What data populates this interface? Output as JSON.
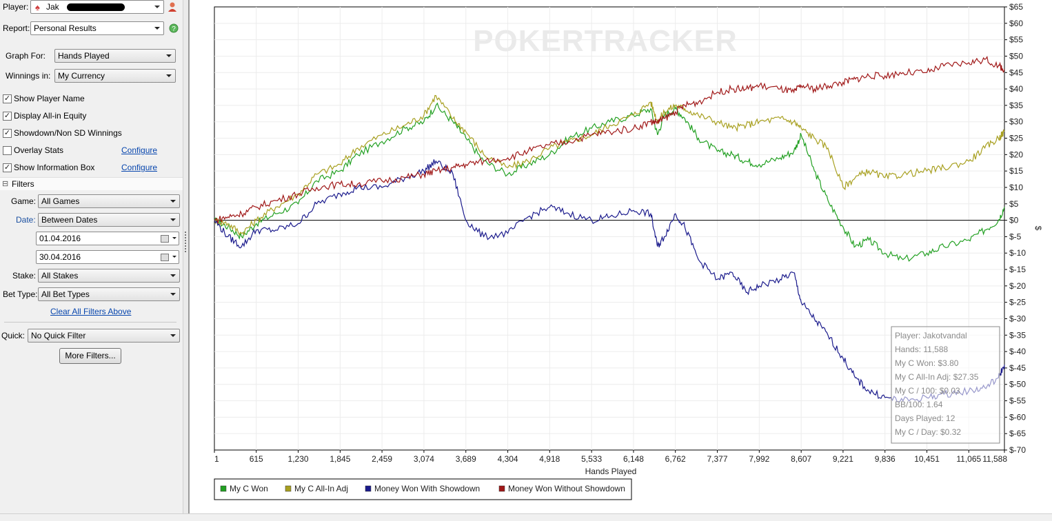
{
  "sidebar": {
    "player_label": "Player:",
    "player_value": "Jak",
    "report_label": "Report:",
    "report_value": "Personal Results",
    "graph_for_label": "Graph For:",
    "graph_for_value": "Hands Played",
    "winnings_label": "Winnings in:",
    "winnings_value": "My Currency",
    "checks": [
      {
        "label": "Show Player Name",
        "checked": true
      },
      {
        "label": "Display All-in Equity",
        "checked": true
      },
      {
        "label": "Showdown/Non SD Winnings",
        "checked": true
      },
      {
        "label": "Overlay Stats",
        "checked": false
      },
      {
        "label": "Show Information Box",
        "checked": true
      }
    ],
    "configure_label": "Configure",
    "filters_label": "Filters",
    "filters_toggle": "⊟",
    "game_label": "Game:",
    "game_value": "All Games",
    "date_label": "Date:",
    "date_value": "Between Dates",
    "date_from": "01.04.2016",
    "date_to": "30.04.2016",
    "stake_label": "Stake:",
    "stake_value": "All Stakes",
    "bet_type_label": "Bet Type:",
    "bet_type_value": "All Bet Types",
    "clear_filters_label": "Clear All Filters Above",
    "quick_label": "Quick:",
    "quick_value": "No Quick Filter",
    "more_filters_label": "More Filters..."
  },
  "chart_data": {
    "type": "line",
    "watermark": "POKERTRACKER",
    "xlabel": "Hands Played",
    "ylabel": "$",
    "xlim": [
      1,
      11588
    ],
    "ylim": [
      -70,
      65
    ],
    "x_ticks": [
      "1",
      "615",
      "1,230",
      "1,845",
      "2,459",
      "3,074",
      "3,689",
      "4,304",
      "4,918",
      "5,533",
      "6,148",
      "6,762",
      "7,377",
      "7,992",
      "8,607",
      "9,221",
      "9,836",
      "10,451",
      "11,065",
      "11,588"
    ],
    "y_ticks": [
      "$65",
      "$60",
      "$55",
      "$50",
      "$45",
      "$40",
      "$35",
      "$30",
      "$25",
      "$20",
      "$15",
      "$10",
      "$5",
      "$0",
      "$-5",
      "$-10",
      "$-15",
      "$-20",
      "$-25",
      "$-30",
      "$-35",
      "$-40",
      "$-45",
      "$-50",
      "$-55",
      "$-60",
      "$-65",
      "$-70"
    ],
    "grid": true,
    "legend_position": "bottom-left",
    "series": [
      {
        "name": "My C Won",
        "color": "#22a022",
        "x": [
          1,
          200,
          400,
          615,
          900,
          1230,
          1500,
          1845,
          2100,
          2459,
          2800,
          3074,
          3250,
          3500,
          3689,
          3950,
          4304,
          4600,
          4918,
          5200,
          5533,
          5800,
          6148,
          6400,
          6500,
          6600,
          6762,
          6900,
          7100,
          7377,
          7600,
          7800,
          7992,
          8300,
          8500,
          8607,
          8800,
          9000,
          9221,
          9400,
          9600,
          9836,
          10100,
          10451,
          10700,
          11065,
          11300,
          11500,
          11588
        ],
        "y": [
          0,
          -2,
          -5,
          -1,
          2,
          5,
          12,
          15,
          20,
          24,
          28,
          30,
          35,
          30,
          25,
          18,
          14,
          17,
          20,
          25,
          28,
          30,
          32,
          34,
          26,
          32,
          34,
          31,
          25,
          21,
          20,
          18,
          17,
          19,
          21,
          26,
          15,
          6,
          -2,
          -8,
          -6,
          -10,
          -12,
          -10,
          -8,
          -6,
          -3,
          0,
          4
        ]
      },
      {
        "name": "My C All-In Adj",
        "color": "#a8a020",
        "x": [
          1,
          200,
          400,
          615,
          900,
          1230,
          1500,
          1845,
          2100,
          2459,
          2800,
          3074,
          3250,
          3500,
          3689,
          3950,
          4304,
          4600,
          4918,
          5200,
          5533,
          5800,
          6148,
          6400,
          6500,
          6600,
          6762,
          6900,
          7100,
          7377,
          7600,
          7800,
          7992,
          8300,
          8500,
          8607,
          8800,
          9000,
          9221,
          9400,
          9600,
          9836,
          10100,
          10451,
          10700,
          11065,
          11300,
          11500,
          11588
        ],
        "y": [
          0,
          -1,
          -4,
          0,
          4,
          8,
          14,
          17,
          22,
          26,
          29,
          32,
          38,
          31,
          27,
          20,
          16,
          18,
          22,
          24,
          26,
          29,
          32,
          36,
          30,
          33,
          35,
          34,
          32,
          30,
          28,
          29,
          30,
          31,
          30,
          28,
          25,
          22,
          10,
          13,
          15,
          13,
          14,
          15,
          16,
          18,
          22,
          25,
          27
        ]
      },
      {
        "name": "Money Won With Showdown",
        "color": "#1a1a8c",
        "x": [
          1,
          200,
          400,
          615,
          900,
          1230,
          1500,
          1845,
          2100,
          2459,
          2800,
          3074,
          3250,
          3500,
          3689,
          3950,
          4304,
          4600,
          4918,
          5200,
          5533,
          5800,
          6148,
          6400,
          6500,
          6600,
          6762,
          6900,
          7100,
          7377,
          7600,
          7800,
          7992,
          8300,
          8500,
          8607,
          8800,
          9000,
          9221,
          9400,
          9600,
          9836,
          10100,
          10451,
          10700,
          11065,
          11300,
          11500,
          11588
        ],
        "y": [
          0,
          -5,
          -8,
          -3,
          -3,
          -1,
          5,
          8,
          10,
          10,
          13,
          15,
          18,
          14,
          0,
          -5,
          -4,
          1,
          4,
          2,
          0,
          1,
          3,
          2,
          -8,
          -5,
          2,
          -2,
          -12,
          -18,
          -16,
          -22,
          -20,
          -18,
          -16,
          -25,
          -30,
          -35,
          -42,
          -48,
          -52,
          -54,
          -55,
          -54,
          -53,
          -52,
          -51,
          -48,
          -44
        ]
      },
      {
        "name": "Money Won Without Showdown",
        "color": "#a01818",
        "x": [
          1,
          200,
          400,
          615,
          900,
          1230,
          1500,
          1845,
          2100,
          2459,
          2800,
          3074,
          3250,
          3500,
          3689,
          3950,
          4304,
          4600,
          4918,
          5200,
          5533,
          5800,
          6148,
          6400,
          6500,
          6600,
          6762,
          6900,
          7100,
          7377,
          7600,
          7800,
          7992,
          8300,
          8500,
          8607,
          8800,
          9000,
          9221,
          9400,
          9600,
          9836,
          10100,
          10451,
          10700,
          11065,
          11300,
          11500,
          11588
        ],
        "y": [
          0,
          1,
          2,
          4,
          6,
          8,
          10,
          11,
          11,
          12,
          13,
          14,
          15,
          16,
          17,
          18,
          19,
          21,
          23,
          24,
          26,
          27,
          28,
          30,
          30,
          31,
          33,
          35,
          36,
          39,
          40,
          40,
          41,
          40,
          39,
          41,
          40,
          41,
          42,
          43,
          44,
          44,
          45,
          45,
          47,
          48,
          49,
          47,
          46
        ]
      }
    ],
    "info_box": [
      "Player: Jakotvandal",
      "Hands: 11,588",
      "My C Won: $3.80",
      "My C All-In Adj: $27.35",
      "My C / 100: $0.03",
      "BB/100: 1.64",
      "Days Played: 12",
      "My C / Day: $0.32"
    ]
  },
  "colors": {
    "green": "#22a022",
    "olive": "#a8a020",
    "blue": "#1a1a8c",
    "red": "#a01818",
    "link": "#0645ad",
    "panel": "#f0f0f0"
  }
}
